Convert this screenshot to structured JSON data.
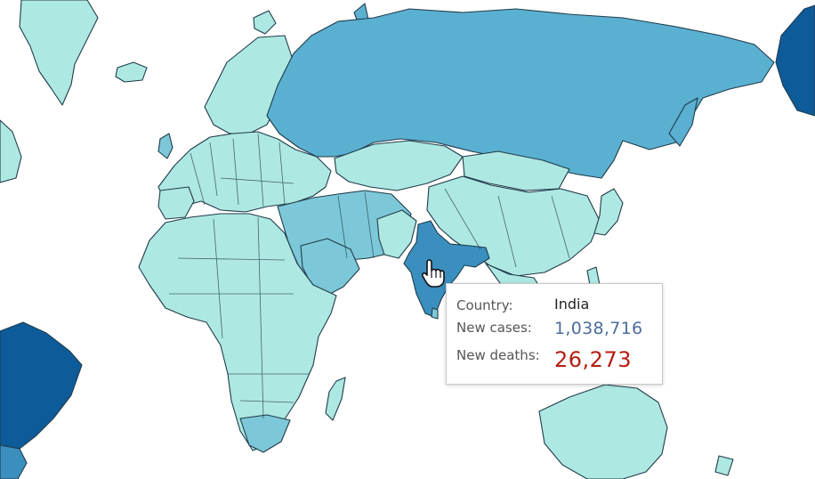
{
  "map": {
    "type": "choropleth",
    "colors": {
      "lowest": "#aee8e2",
      "low": "#7cc8d8",
      "mid": "#5ab0d0",
      "high": "#3a8fbf",
      "highest": "#0e5b9a",
      "selected_outline": "#0a1a2a"
    },
    "highlighted_country": "India"
  },
  "tooltip": {
    "country_label": "Country:",
    "country_value": "India",
    "cases_label": "New cases:",
    "cases_value": "1,038,716",
    "deaths_label": "New deaths:",
    "deaths_value": "26,273",
    "cases_color": "#4b6d9b",
    "deaths_color": "#b51d12"
  },
  "cursor": {
    "icon": "hand-pointer-icon"
  }
}
